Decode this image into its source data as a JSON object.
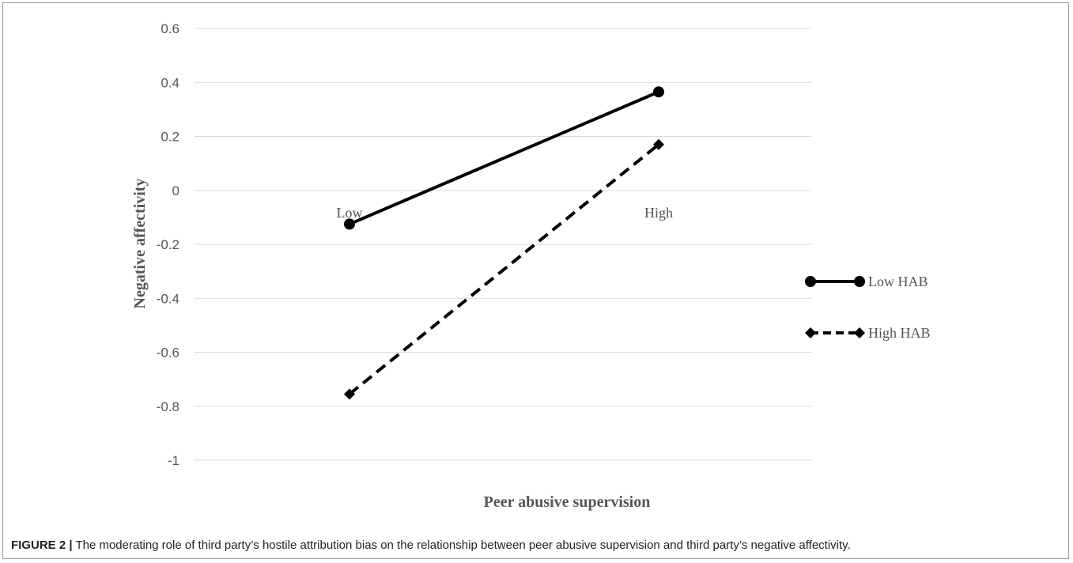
{
  "chart_data": {
    "type": "line",
    "categories": [
      "Low",
      "High"
    ],
    "xlabel": "Peer abusive supervision",
    "ylabel": "Negative affectivity",
    "ylim": [
      -1,
      0.6
    ],
    "yticks": [
      0.6,
      0.4,
      0.2,
      0,
      -0.2,
      -0.4,
      -0.6,
      -0.8,
      -1
    ],
    "ytick_labels": [
      "0.6",
      "0.4",
      "0.2",
      "0",
      "-0.2",
      "-0.4",
      "-0.6",
      "-0.8",
      "-1"
    ],
    "grid": true,
    "legend_position": "right",
    "series": [
      {
        "name": "Low HAB",
        "values": [
          -0.125,
          0.365
        ],
        "style": "solid",
        "marker": "circle",
        "color": "#000000"
      },
      {
        "name": "High HAB",
        "values": [
          -0.755,
          0.17
        ],
        "style": "dashed",
        "marker": "diamond",
        "color": "#000000"
      }
    ]
  },
  "caption": {
    "label": "FIGURE 2 |",
    "text": " The moderating role of third party’s hostile attribution bias on the relationship between peer abusive supervision and third party’s negative affectivity."
  }
}
